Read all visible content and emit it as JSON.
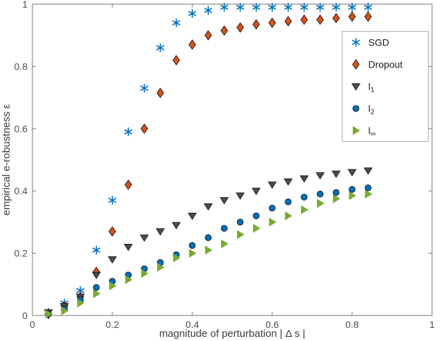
{
  "figure": {
    "background": "#ffffff",
    "axis_box_color": "#737373",
    "tick_label_color": "#4d4d4d",
    "axis_label_color": "#3b3b3b",
    "legend_border_color": "#adadad"
  },
  "chart_data": {
    "type": "scatter",
    "title": "",
    "xlabel": "magnitude of perturbation | Δ s |",
    "ylabel": "empirical e-robustness ε",
    "xlim": [
      0,
      1
    ],
    "ylim": [
      0,
      1
    ],
    "xticks": [
      0,
      0.2,
      0.4,
      0.6,
      0.8,
      1
    ],
    "yticks": [
      0,
      0.2,
      0.4,
      0.6,
      0.8,
      1
    ],
    "grid": false,
    "legend_position": "upper right",
    "x": [
      0.04,
      0.08,
      0.12,
      0.16,
      0.2,
      0.24,
      0.28,
      0.32,
      0.36,
      0.4,
      0.44,
      0.48,
      0.52,
      0.56,
      0.6,
      0.64,
      0.68,
      0.72,
      0.76,
      0.8,
      0.84
    ],
    "series": [
      {
        "id": "sgd",
        "name": "SGD",
        "sub": "",
        "marker": "asterisk",
        "color": "#0072BD",
        "edge": "#0072BD",
        "values": [
          0.01,
          0.04,
          0.08,
          0.21,
          0.37,
          0.59,
          0.73,
          0.86,
          0.94,
          0.97,
          0.98,
          0.99,
          0.99,
          0.99,
          0.99,
          0.99,
          0.99,
          0.99,
          0.99,
          0.99,
          0.99
        ]
      },
      {
        "id": "dropout",
        "name": "Dropout",
        "sub": "",
        "marker": "diamond",
        "color": "#D95319",
        "edge": "#1a1a1a",
        "values": [
          0.005,
          0.03,
          0.06,
          0.14,
          0.27,
          0.42,
          0.6,
          0.715,
          0.82,
          0.87,
          0.9,
          0.915,
          0.925,
          0.935,
          0.94,
          0.945,
          0.95,
          0.95,
          0.955,
          0.96,
          0.96
        ]
      },
      {
        "id": "l1",
        "name": "l",
        "sub": "1",
        "marker": "triangle-down",
        "color": "#4d4d4d",
        "edge": "#1a1a1a",
        "values": [
          0.01,
          0.03,
          0.06,
          0.13,
          0.18,
          0.22,
          0.25,
          0.27,
          0.29,
          0.32,
          0.35,
          0.37,
          0.385,
          0.4,
          0.42,
          0.43,
          0.44,
          0.45,
          0.455,
          0.46,
          0.465
        ]
      },
      {
        "id": "l2",
        "name": "l",
        "sub": "2",
        "marker": "circle",
        "color": "#0072BD",
        "edge": "#1a1a1a",
        "values": [
          0.005,
          0.02,
          0.05,
          0.09,
          0.11,
          0.13,
          0.15,
          0.17,
          0.195,
          0.225,
          0.25,
          0.28,
          0.3,
          0.32,
          0.345,
          0.365,
          0.38,
          0.39,
          0.395,
          0.405,
          0.41
        ]
      },
      {
        "id": "linf",
        "name": "l",
        "sub": "∞",
        "marker": "triangle-right",
        "color": "#77AC30",
        "edge": "#77AC30",
        "values": [
          0.005,
          0.015,
          0.04,
          0.07,
          0.095,
          0.115,
          0.135,
          0.155,
          0.185,
          0.2,
          0.21,
          0.23,
          0.26,
          0.28,
          0.3,
          0.32,
          0.34,
          0.36,
          0.375,
          0.385,
          0.39
        ]
      }
    ]
  }
}
